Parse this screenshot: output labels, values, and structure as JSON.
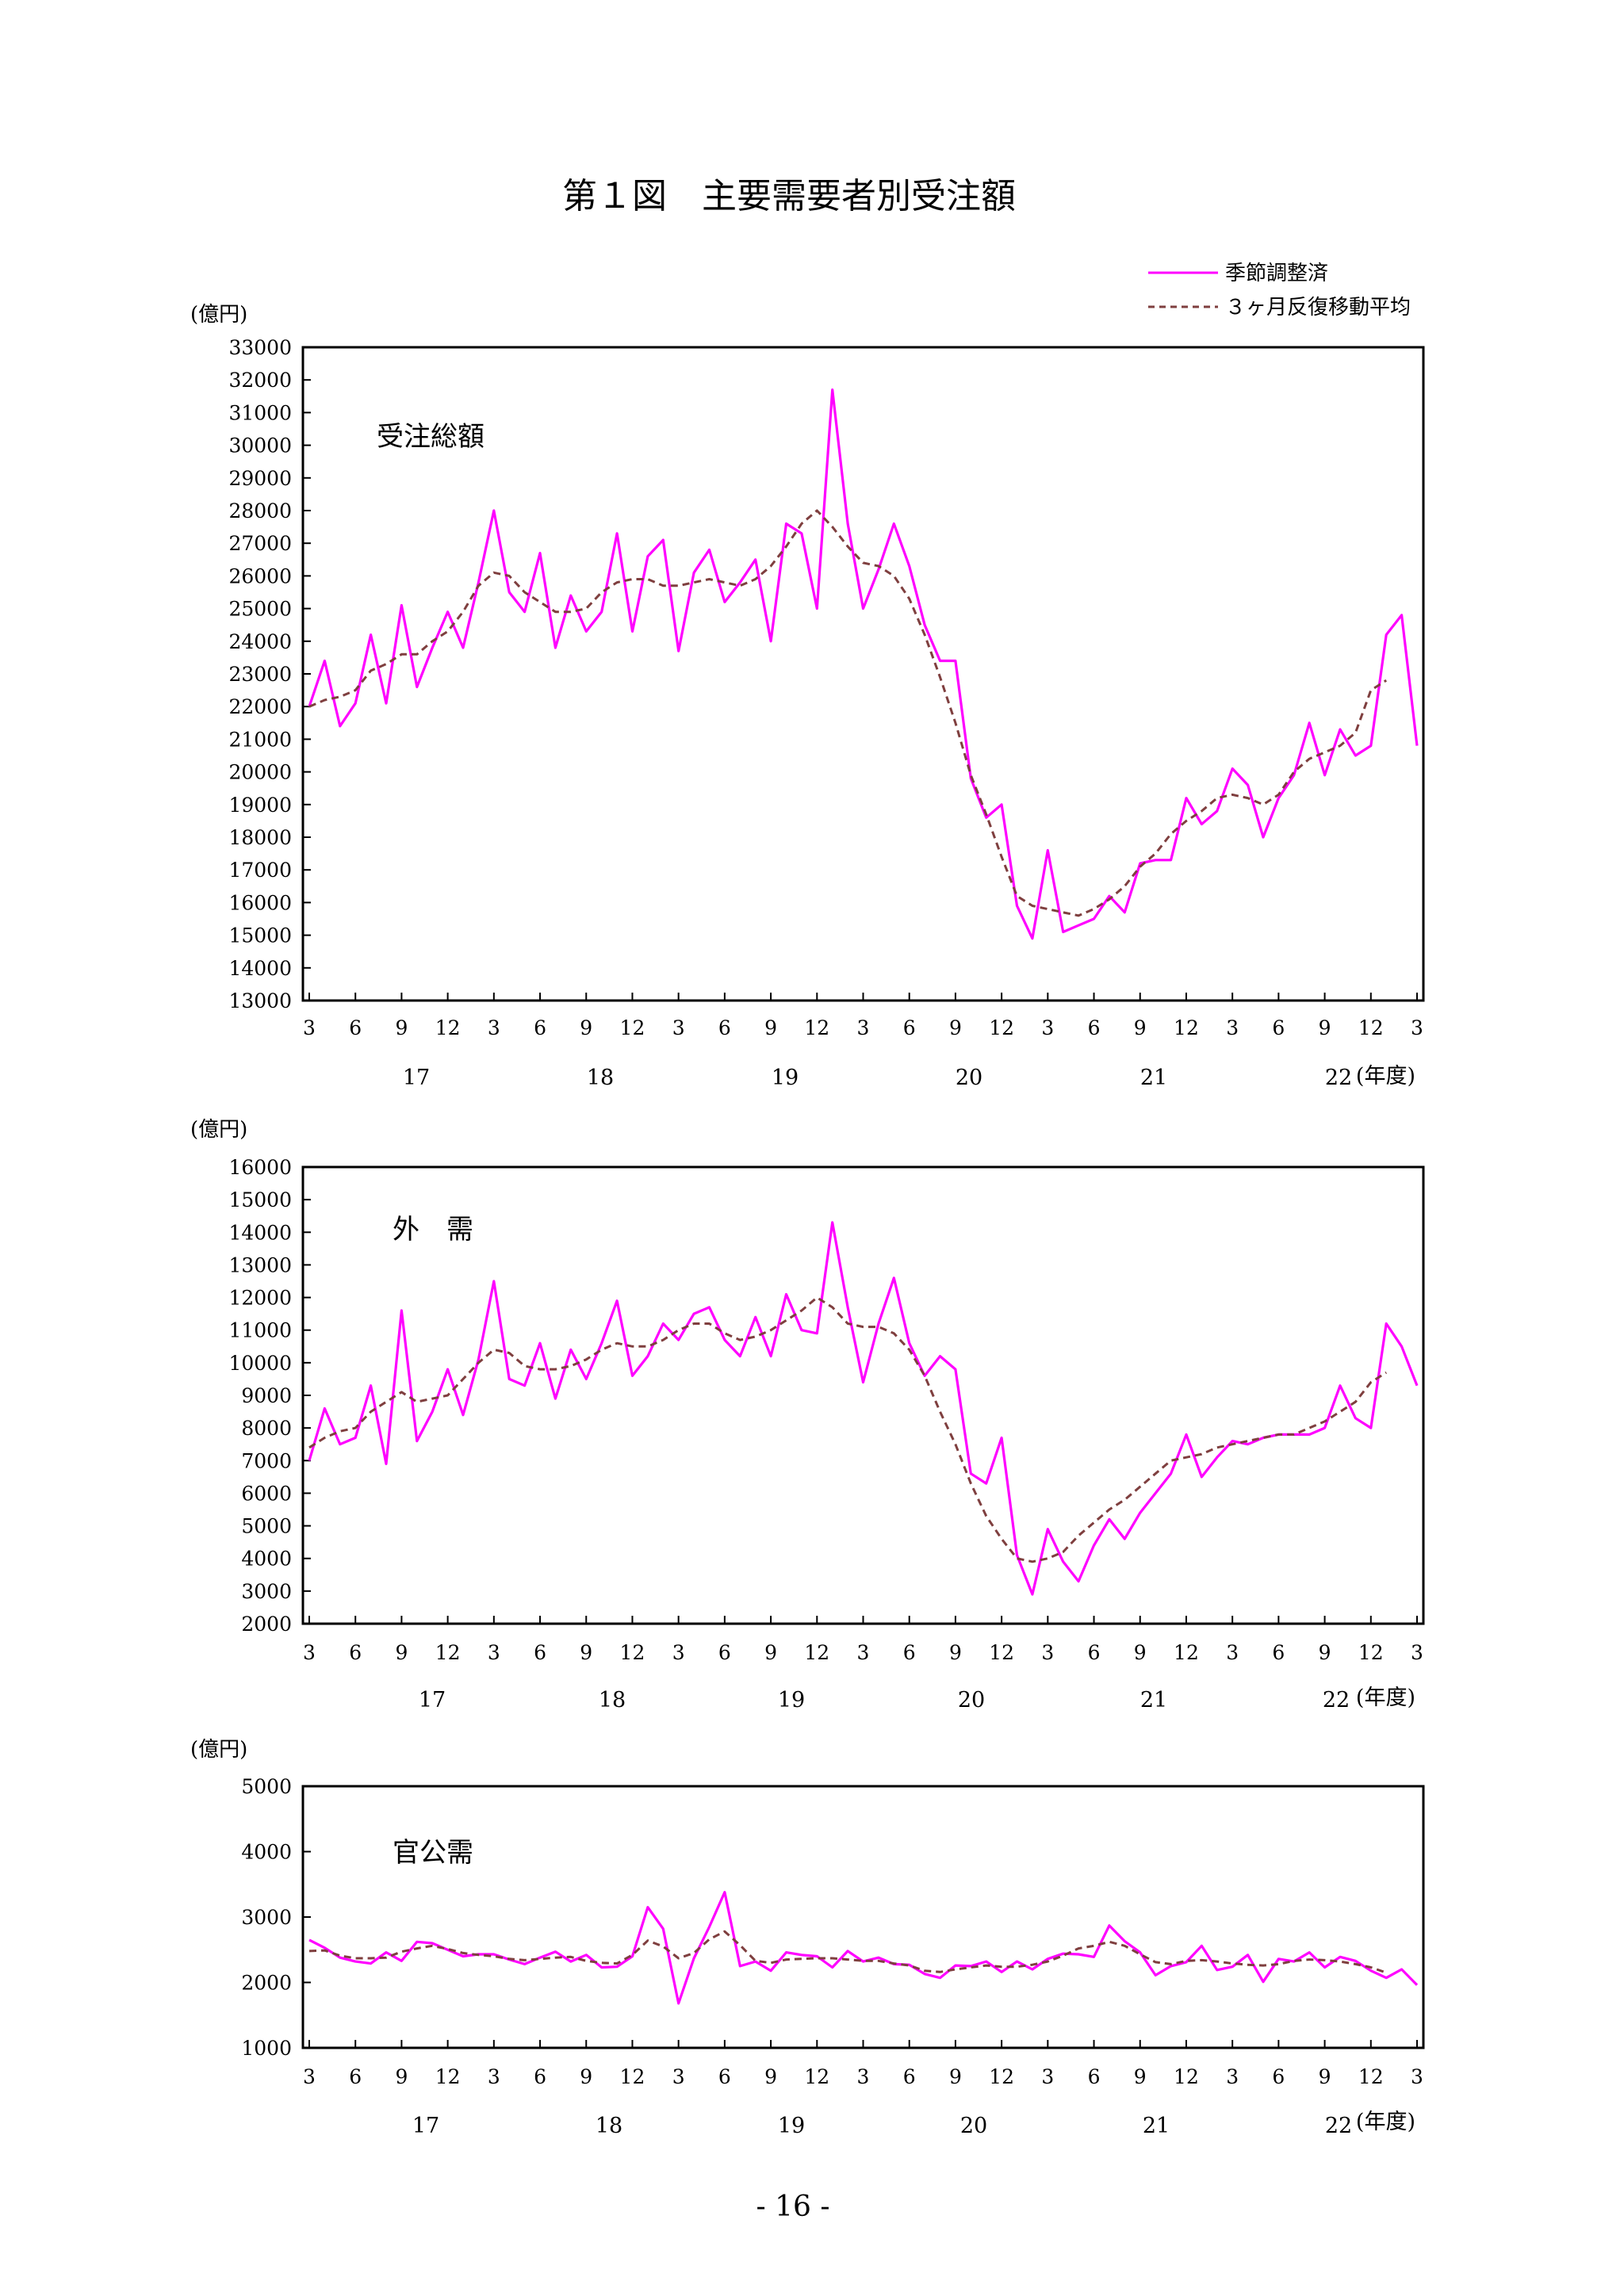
{
  "page": {
    "title": "第１図　主要需要者別受注額",
    "page_number": "- 16 -",
    "legend": [
      {
        "label": "季節調整済",
        "color": "#ff00ff",
        "style": "solid"
      },
      {
        "label": "３ヶ月反復移動平均",
        "color": "#7f3f3f",
        "style": "dashed"
      }
    ]
  },
  "chart_data": [
    {
      "type": "line",
      "title": "受注総額",
      "ylabel": "(億円)",
      "xlabel": "(年度)",
      "ylim": [
        13000,
        33000
      ],
      "ytick_step": 1000,
      "x_month_labels": [
        "3",
        "6",
        "9",
        "12",
        "3",
        "6",
        "9",
        "12",
        "3",
        "6",
        "9",
        "12",
        "3",
        "6",
        "9",
        "12",
        "3",
        "6",
        "9",
        "12",
        "3",
        "6",
        "9",
        "12",
        "3"
      ],
      "x_year_labels": [
        "17",
        "18",
        "19",
        "20",
        "21",
        "22"
      ],
      "series": [
        {
          "name": "季節調整済",
          "color": "#ff00ff",
          "dashed": false,
          "values": [
            22000,
            23400,
            21400,
            22100,
            24200,
            22100,
            25100,
            22600,
            23800,
            24900,
            23800,
            25800,
            28000,
            25500,
            24900,
            26700,
            23800,
            25400,
            24300,
            24900,
            27300,
            24300,
            26600,
            27100,
            23700,
            26100,
            26800,
            25200,
            25800,
            26500,
            24000,
            27600,
            27300,
            25000,
            31700,
            27600,
            25000,
            26200,
            27600,
            26300,
            24500,
            23400,
            23400,
            19800,
            18600,
            19000,
            15900,
            14900,
            17600,
            15100,
            15300,
            15500,
            16200,
            15700,
            17200,
            17300,
            17300,
            19200,
            18400,
            18800,
            20100,
            19600,
            18000,
            19200,
            19900,
            21500,
            19900,
            21300,
            20500,
            20800,
            24200,
            24800,
            20800
          ]
        },
        {
          "name": "３ヶ月反復移動平均",
          "color": "#7f3f3f",
          "dashed": true,
          "values": [
            22000,
            22200,
            22300,
            22500,
            23100,
            23300,
            23600,
            23600,
            24000,
            24300,
            24900,
            25700,
            26100,
            26000,
            25500,
            25200,
            24900,
            24900,
            25000,
            25500,
            25800,
            25900,
            25900,
            25700,
            25700,
            25800,
            25900,
            25800,
            25700,
            25900,
            26300,
            26900,
            27600,
            28000,
            27500,
            26900,
            26400,
            26300,
            26000,
            25300,
            24200,
            22900,
            21500,
            19900,
            18700,
            17400,
            16200,
            15900,
            15800,
            15700,
            15600,
            15800,
            16100,
            16500,
            17100,
            17500,
            18100,
            18500,
            18800,
            19200,
            19300,
            19200,
            19000,
            19300,
            20000,
            20400,
            20600,
            20800,
            21200,
            22500,
            22800,
            null,
            null
          ]
        }
      ]
    },
    {
      "type": "line",
      "title": "外　需",
      "ylabel": "(億円)",
      "xlabel": "(年度)",
      "ylim": [
        2000,
        16000
      ],
      "ytick_step": 1000,
      "x_month_labels": [
        "3",
        "6",
        "9",
        "12",
        "3",
        "6",
        "9",
        "12",
        "3",
        "6",
        "9",
        "12",
        "3",
        "6",
        "9",
        "12",
        "3",
        "6",
        "9",
        "12",
        "3",
        "6",
        "9",
        "12",
        "3"
      ],
      "x_year_labels": [
        "17",
        "18",
        "19",
        "20",
        "21",
        "22"
      ],
      "series": [
        {
          "name": "季節調整済",
          "color": "#ff00ff",
          "dashed": false,
          "values": [
            7000,
            8600,
            7500,
            7700,
            9300,
            6900,
            11600,
            7600,
            8500,
            9800,
            8400,
            10100,
            12500,
            9500,
            9300,
            10600,
            8900,
            10400,
            9500,
            10600,
            11900,
            9600,
            10200,
            11200,
            10700,
            11500,
            11700,
            10700,
            10200,
            11400,
            10200,
            12100,
            11000,
            10900,
            14300,
            11700,
            9400,
            11200,
            12600,
            10600,
            9600,
            10200,
            9800,
            6600,
            6300,
            7700,
            4100,
            2900,
            4900,
            3900,
            3300,
            4400,
            5200,
            4600,
            5400,
            6000,
            6600,
            7800,
            6500,
            7100,
            7600,
            7500,
            7700,
            7800,
            7800,
            7800,
            8000,
            9300,
            8300,
            8000,
            11200,
            10500,
            9300
          ]
        },
        {
          "name": "３ヶ月反復移動平均",
          "color": "#7f3f3f",
          "dashed": true,
          "values": [
            7400,
            7700,
            7900,
            8000,
            8500,
            8800,
            9100,
            8800,
            8900,
            9000,
            9500,
            10000,
            10400,
            10300,
            9900,
            9800,
            9800,
            9900,
            10100,
            10400,
            10600,
            10500,
            10500,
            10700,
            11000,
            11200,
            11200,
            10900,
            10700,
            10800,
            11000,
            11300,
            11600,
            12000,
            11700,
            11200,
            11100,
            11100,
            10900,
            10400,
            9600,
            8500,
            7500,
            6300,
            5300,
            4600,
            4000,
            3900,
            4000,
            4200,
            4700,
            5100,
            5500,
            5800,
            6200,
            6600,
            7000,
            7100,
            7200,
            7400,
            7500,
            7600,
            7700,
            7800,
            7800,
            8000,
            8200,
            8500,
            8800,
            9400,
            9700,
            null,
            null
          ]
        }
      ]
    },
    {
      "type": "line",
      "title": "官公需",
      "ylabel": "(億円)",
      "xlabel": "(年度)",
      "ylim": [
        1000,
        5000
      ],
      "ytick_step": 1000,
      "x_month_labels": [
        "3",
        "6",
        "9",
        "12",
        "3",
        "6",
        "9",
        "12",
        "3",
        "6",
        "9",
        "12",
        "3",
        "6",
        "9",
        "12",
        "3",
        "6",
        "9",
        "12",
        "3",
        "6",
        "9",
        "12",
        "3"
      ],
      "x_year_labels": [
        "17",
        "18",
        "19",
        "20",
        "21",
        "22"
      ],
      "series": [
        {
          "name": "季節調整済",
          "color": "#ff00ff",
          "dashed": false,
          "values": [
            2650,
            2530,
            2380,
            2320,
            2290,
            2460,
            2330,
            2620,
            2600,
            2500,
            2400,
            2430,
            2430,
            2350,
            2280,
            2380,
            2470,
            2320,
            2420,
            2230,
            2240,
            2400,
            3150,
            2820,
            1680,
            2370,
            2850,
            3380,
            2250,
            2320,
            2180,
            2460,
            2420,
            2400,
            2230,
            2480,
            2320,
            2380,
            2280,
            2270,
            2130,
            2070,
            2260,
            2250,
            2320,
            2160,
            2320,
            2200,
            2360,
            2440,
            2430,
            2390,
            2870,
            2630,
            2460,
            2110,
            2250,
            2310,
            2560,
            2190,
            2240,
            2420,
            2010,
            2360,
            2320,
            2460,
            2230,
            2390,
            2330,
            2180,
            2070,
            2200,
            1960
          ]
        },
        {
          "name": "３ヶ月反復移動平均",
          "color": "#7f3f3f",
          "dashed": true,
          "values": [
            2480,
            2490,
            2410,
            2370,
            2370,
            2380,
            2470,
            2520,
            2560,
            2510,
            2450,
            2420,
            2400,
            2360,
            2340,
            2360,
            2380,
            2390,
            2330,
            2300,
            2290,
            2420,
            2640,
            2550,
            2370,
            2450,
            2660,
            2780,
            2570,
            2330,
            2300,
            2350,
            2360,
            2370,
            2370,
            2350,
            2330,
            2330,
            2290,
            2260,
            2180,
            2160,
            2200,
            2230,
            2260,
            2240,
            2240,
            2270,
            2320,
            2410,
            2520,
            2560,
            2620,
            2560,
            2430,
            2310,
            2280,
            2330,
            2340,
            2320,
            2290,
            2270,
            2260,
            2280,
            2330,
            2350,
            2340,
            2320,
            2280,
            2230,
            2150,
            null,
            null
          ]
        }
      ]
    }
  ]
}
